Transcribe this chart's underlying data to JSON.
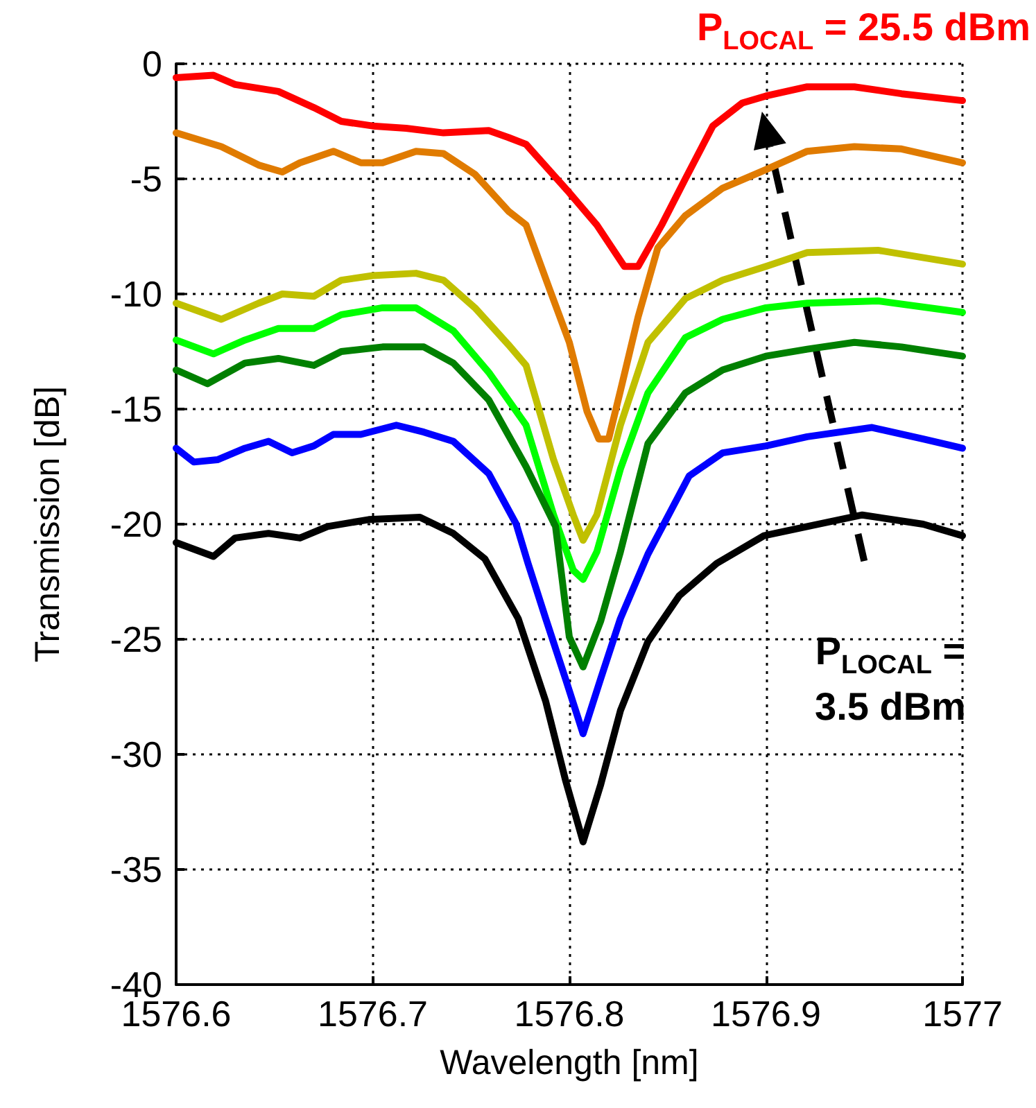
{
  "chart_data": {
    "type": "line",
    "xlabel": "Wavelength [nm]",
    "ylabel": "Transmission [dB]",
    "xlim": [
      1576.6,
      1577
    ],
    "xticks": [
      1576.6,
      1576.7,
      1576.8,
      1576.9,
      1577
    ],
    "ylim": [
      -40,
      0
    ],
    "yticks": [
      -40,
      -35,
      -30,
      -25,
      -20,
      -15,
      -10,
      -5,
      0
    ],
    "grid": true,
    "marker": "none",
    "line_style": "solid",
    "annotations": [
      "P$_{LOCAL}$ = 25.5 dBm",
      "P$_{LOCAL}$ = 3.5 dBm"
    ],
    "series": [
      {
        "color": "#ff0000",
        "x": [
          1576.6,
          1576.619,
          1576.63,
          1576.652,
          1576.67,
          1576.684,
          1576.7,
          1576.717,
          1576.736,
          1576.759,
          1576.769,
          1576.778,
          1576.8,
          1576.814,
          1576.828,
          1576.835,
          1576.847,
          1576.859,
          1576.873,
          1576.888,
          1576.9,
          1576.921,
          1576.945,
          1576.969,
          1577
        ],
        "values": [
          -0.6,
          -0.5,
          -0.9,
          -1.2,
          -1.9,
          -2.5,
          -2.7,
          -2.8,
          -3.0,
          -2.9,
          -3.2,
          -3.5,
          -5.6,
          -7.0,
          -8.8,
          -8.8,
          -7.0,
          -5.0,
          -2.7,
          -1.7,
          -1.4,
          -1.0,
          -1.0,
          -1.3,
          -1.6
        ]
      },
      {
        "color": "#e07b00",
        "x": [
          1576.6,
          1576.623,
          1576.642,
          1576.654,
          1576.663,
          1576.68,
          1576.694,
          1576.705,
          1576.722,
          1576.736,
          1576.752,
          1576.769,
          1576.778,
          1576.79,
          1576.8,
          1576.809,
          1576.815,
          1576.82,
          1576.826,
          1576.835,
          1576.845,
          1576.859,
          1576.878,
          1576.9,
          1576.921,
          1576.945,
          1576.969,
          1577
        ],
        "values": [
          -3.0,
          -3.6,
          -4.4,
          -4.7,
          -4.3,
          -3.8,
          -4.3,
          -4.3,
          -3.8,
          -3.9,
          -4.8,
          -6.4,
          -7.0,
          -9.8,
          -12.1,
          -15.1,
          -16.3,
          -16.3,
          -14.2,
          -11.0,
          -8.0,
          -6.6,
          -5.4,
          -4.6,
          -3.8,
          -3.6,
          -3.7,
          -4.3
        ]
      },
      {
        "color": "#c0c000",
        "x": [
          1576.6,
          1576.623,
          1576.642,
          1576.654,
          1576.67,
          1576.684,
          1576.7,
          1576.722,
          1576.736,
          1576.752,
          1576.769,
          1576.778,
          1576.792,
          1576.802,
          1576.807,
          1576.814,
          1576.826,
          1576.84,
          1576.859,
          1576.878,
          1576.9,
          1576.921,
          1576.957,
          1577
        ],
        "values": [
          -10.4,
          -11.1,
          -10.4,
          -10.0,
          -10.1,
          -9.4,
          -9.2,
          -9.1,
          -9.4,
          -10.6,
          -12.2,
          -13.1,
          -17.2,
          -19.6,
          -20.7,
          -19.6,
          -15.7,
          -12.1,
          -10.2,
          -9.4,
          -8.8,
          -8.2,
          -8.1,
          -8.7
        ]
      },
      {
        "color": "#00ff00",
        "x": [
          1576.6,
          1576.619,
          1576.635,
          1576.652,
          1576.67,
          1576.684,
          1576.705,
          1576.722,
          1576.741,
          1576.759,
          1576.778,
          1576.792,
          1576.802,
          1576.807,
          1576.814,
          1576.826,
          1576.84,
          1576.859,
          1576.878,
          1576.9,
          1576.921,
          1576.957,
          1577
        ],
        "values": [
          -12.0,
          -12.6,
          -12.0,
          -11.5,
          -11.5,
          -10.9,
          -10.6,
          -10.6,
          -11.6,
          -13.4,
          -15.7,
          -19.6,
          -22.0,
          -22.4,
          -21.2,
          -17.6,
          -14.3,
          -11.9,
          -11.1,
          -10.6,
          -10.4,
          -10.3,
          -10.8
        ]
      },
      {
        "color": "#008000",
        "x": [
          1576.6,
          1576.616,
          1576.635,
          1576.652,
          1576.67,
          1576.684,
          1576.705,
          1576.726,
          1576.741,
          1576.759,
          1576.778,
          1576.793,
          1576.8,
          1576.807,
          1576.816,
          1576.826,
          1576.84,
          1576.859,
          1576.878,
          1576.9,
          1576.921,
          1576.945,
          1576.969,
          1577
        ],
        "values": [
          -13.3,
          -13.9,
          -13.0,
          -12.8,
          -13.1,
          -12.5,
          -12.3,
          -12.3,
          -13.0,
          -14.6,
          -17.5,
          -20.1,
          -24.9,
          -26.2,
          -24.2,
          -21.2,
          -16.5,
          -14.3,
          -13.3,
          -12.7,
          -12.4,
          -12.1,
          -12.3,
          -12.7
        ]
      },
      {
        "color": "#0000ff",
        "x": [
          1576.6,
          1576.609,
          1576.621,
          1576.635,
          1576.647,
          1576.659,
          1576.67,
          1576.68,
          1576.694,
          1576.712,
          1576.726,
          1576.741,
          1576.759,
          1576.773,
          1576.779,
          1576.788,
          1576.798,
          1576.807,
          1576.816,
          1576.826,
          1576.84,
          1576.861,
          1576.878,
          1576.9,
          1576.921,
          1576.954,
          1576.98,
          1577
        ],
        "values": [
          -16.7,
          -17.3,
          -17.2,
          -16.7,
          -16.4,
          -16.9,
          -16.6,
          -16.1,
          -16.1,
          -15.7,
          -16.0,
          -16.4,
          -17.8,
          -20.0,
          -21.7,
          -24.1,
          -26.7,
          -29.1,
          -26.7,
          -24.1,
          -21.3,
          -17.9,
          -16.9,
          -16.6,
          -16.2,
          -15.8,
          -16.3,
          -16.7
        ]
      },
      {
        "color": "#000000",
        "x": [
          1576.6,
          1576.619,
          1576.63,
          1576.647,
          1576.663,
          1576.677,
          1576.698,
          1576.724,
          1576.741,
          1576.757,
          1576.774,
          1576.788,
          1576.798,
          1576.807,
          1576.816,
          1576.826,
          1576.84,
          1576.856,
          1576.875,
          1576.899,
          1576.921,
          1576.949,
          1576.98,
          1577
        ],
        "values": [
          -20.8,
          -21.4,
          -20.6,
          -20.4,
          -20.6,
          -20.1,
          -19.8,
          -19.7,
          -20.4,
          -21.5,
          -24.1,
          -27.7,
          -31.1,
          -33.8,
          -31.3,
          -28.1,
          -25.1,
          -23.1,
          -21.7,
          -20.5,
          -20.1,
          -19.6,
          -20.0,
          -20.5
        ]
      }
    ]
  }
}
